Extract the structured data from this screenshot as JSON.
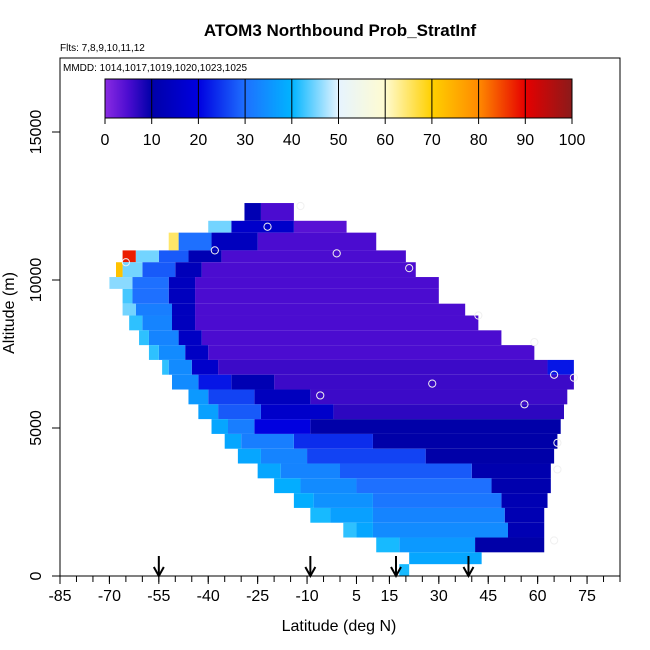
{
  "chart_data": {
    "type": "heatmap",
    "title": "ATOM3 Northbound Prob_StratInf",
    "subtitle_flights": "Flts: 7,8,9,10,11,12",
    "subtitle_dates": "MMDD: 1014,1017,1019,1020,1023,1025",
    "xlabel": "Latitude (deg N)",
    "ylabel": "Altitude (m)",
    "xlim": [
      -85,
      85
    ],
    "ylim": [
      0,
      17500
    ],
    "xticks": [
      -85,
      -70,
      -55,
      -40,
      -25,
      -10,
      5,
      15,
      30,
      45,
      60,
      75
    ],
    "xminor_step": 5,
    "yticks": [
      0,
      5000,
      10000,
      15000
    ],
    "colorbar": {
      "ticks": [
        0,
        10,
        20,
        30,
        40,
        50,
        60,
        70,
        80,
        90,
        100
      ],
      "stops": [
        [
          0,
          "#8a2be2"
        ],
        [
          5,
          "#4b0cd0"
        ],
        [
          10,
          "#0000a8"
        ],
        [
          20,
          "#0000e0"
        ],
        [
          30,
          "#1e70ff"
        ],
        [
          40,
          "#00b4ff"
        ],
        [
          50,
          "#e6f4ff"
        ],
        [
          60,
          "#fffbd0"
        ],
        [
          70,
          "#ffd000"
        ],
        [
          80,
          "#ff8a00"
        ],
        [
          90,
          "#e60000"
        ],
        [
          100,
          "#8b1a1a"
        ]
      ]
    },
    "sample_profile_latitudes": [
      -55,
      -9,
      17,
      39
    ],
    "cells": [
      {
        "lat": [
          -24,
          -14
        ],
        "alt": [
          12000,
          12600
        ],
        "value": 5
      },
      {
        "lat": [
          -29,
          -24
        ],
        "alt": [
          12000,
          12600
        ],
        "value": 12
      },
      {
        "lat": [
          -14,
          2
        ],
        "alt": [
          11600,
          12000
        ],
        "value": 4
      },
      {
        "lat": [
          -33,
          -14
        ],
        "alt": [
          11600,
          12000
        ],
        "value": 16
      },
      {
        "lat": [
          -40,
          -33
        ],
        "alt": [
          11600,
          12000
        ],
        "value": 45
      },
      {
        "lat": [
          -25,
          11
        ],
        "alt": [
          11000,
          11600
        ],
        "value": 5
      },
      {
        "lat": [
          -39,
          -25
        ],
        "alt": [
          11000,
          11600
        ],
        "value": 14
      },
      {
        "lat": [
          -49,
          -39
        ],
        "alt": [
          11000,
          11600
        ],
        "value": 30
      },
      {
        "lat": [
          -52,
          -49
        ],
        "alt": [
          11000,
          11600
        ],
        "value": 65
      },
      {
        "lat": [
          -36,
          20
        ],
        "alt": [
          10600,
          11000
        ],
        "value": 5
      },
      {
        "lat": [
          -46,
          -36
        ],
        "alt": [
          10600,
          11000
        ],
        "value": 12
      },
      {
        "lat": [
          -55,
          -46
        ],
        "alt": [
          10600,
          11000
        ],
        "value": 28
      },
      {
        "lat": [
          -62,
          -55
        ],
        "alt": [
          10600,
          11000
        ],
        "value": 45
      },
      {
        "lat": [
          -66,
          -62
        ],
        "alt": [
          10600,
          11000
        ],
        "value": 88
      },
      {
        "lat": [
          -42,
          23
        ],
        "alt": [
          10100,
          10600
        ],
        "value": 5
      },
      {
        "lat": [
          -50,
          -42
        ],
        "alt": [
          10100,
          10600
        ],
        "value": 13
      },
      {
        "lat": [
          -60,
          -50
        ],
        "alt": [
          10100,
          10600
        ],
        "value": 28
      },
      {
        "lat": [
          -66,
          -60
        ],
        "alt": [
          10100,
          10600
        ],
        "value": 45
      },
      {
        "lat": [
          -68,
          -66
        ],
        "alt": [
          10100,
          10600
        ],
        "value": 72
      },
      {
        "lat": [
          -44,
          30
        ],
        "alt": [
          9700,
          10100
        ],
        "value": 5
      },
      {
        "lat": [
          -52,
          -44
        ],
        "alt": [
          9700,
          10100
        ],
        "value": 14
      },
      {
        "lat": [
          -63,
          -52
        ],
        "alt": [
          9700,
          10100
        ],
        "value": 30
      },
      {
        "lat": [
          -70,
          -63
        ],
        "alt": [
          9700,
          10100
        ],
        "value": 46
      },
      {
        "lat": [
          -44,
          30
        ],
        "alt": [
          9200,
          9700
        ],
        "value": 5
      },
      {
        "lat": [
          -52,
          -44
        ],
        "alt": [
          9200,
          9700
        ],
        "value": 14
      },
      {
        "lat": [
          -63,
          -52
        ],
        "alt": [
          9200,
          9700
        ],
        "value": 30
      },
      {
        "lat": [
          -66,
          -63
        ],
        "alt": [
          9200,
          9700
        ],
        "value": 43
      },
      {
        "lat": [
          -44,
          38
        ],
        "alt": [
          8800,
          9200
        ],
        "value": 5
      },
      {
        "lat": [
          -51,
          -44
        ],
        "alt": [
          8800,
          9200
        ],
        "value": 14
      },
      {
        "lat": [
          -62,
          -51
        ],
        "alt": [
          8800,
          9200
        ],
        "value": 32
      },
      {
        "lat": [
          -66,
          -62
        ],
        "alt": [
          8800,
          9200
        ],
        "value": 45
      },
      {
        "lat": [
          -44,
          42
        ],
        "alt": [
          8300,
          8800
        ],
        "value": 5
      },
      {
        "lat": [
          -51,
          -44
        ],
        "alt": [
          8300,
          8800
        ],
        "value": 14
      },
      {
        "lat": [
          -60,
          -51
        ],
        "alt": [
          8300,
          8800
        ],
        "value": 33
      },
      {
        "lat": [
          -64,
          -60
        ],
        "alt": [
          8300,
          8800
        ],
        "value": 42
      },
      {
        "lat": [
          -42,
          49
        ],
        "alt": [
          7800,
          8300
        ],
        "value": 5
      },
      {
        "lat": [
          -49,
          -42
        ],
        "alt": [
          7800,
          8300
        ],
        "value": 15
      },
      {
        "lat": [
          -58,
          -49
        ],
        "alt": [
          7800,
          8300
        ],
        "value": 33
      },
      {
        "lat": [
          -61,
          -58
        ],
        "alt": [
          7800,
          8300
        ],
        "value": 42
      },
      {
        "lat": [
          -40,
          59
        ],
        "alt": [
          7300,
          7800
        ],
        "value": 5
      },
      {
        "lat": [
          -47,
          -40
        ],
        "alt": [
          7300,
          7800
        ],
        "value": 15
      },
      {
        "lat": [
          -55,
          -47
        ],
        "alt": [
          7300,
          7800
        ],
        "value": 34
      },
      {
        "lat": [
          -58,
          -55
        ],
        "alt": [
          7300,
          7800
        ],
        "value": 42
      },
      {
        "lat": [
          -37,
          63
        ],
        "alt": [
          6800,
          7300
        ],
        "value": 6
      },
      {
        "lat": [
          -45,
          -37
        ],
        "alt": [
          6800,
          7300
        ],
        "value": 16
      },
      {
        "lat": [
          -52,
          -45
        ],
        "alt": [
          6800,
          7300
        ],
        "value": 34
      },
      {
        "lat": [
          -54,
          -52
        ],
        "alt": [
          6800,
          7300
        ],
        "value": 42
      },
      {
        "lat": [
          63,
          71
        ],
        "alt": [
          6800,
          7300
        ],
        "value": 22
      },
      {
        "lat": [
          -20,
          71
        ],
        "alt": [
          6300,
          6800
        ],
        "value": 6
      },
      {
        "lat": [
          -33,
          -20
        ],
        "alt": [
          6300,
          6800
        ],
        "value": 12
      },
      {
        "lat": [
          -43,
          -33
        ],
        "alt": [
          6300,
          6800
        ],
        "value": 22
      },
      {
        "lat": [
          -51,
          -43
        ],
        "alt": [
          6300,
          6800
        ],
        "value": 34
      },
      {
        "lat": [
          -9,
          69
        ],
        "alt": [
          5800,
          6300
        ],
        "value": 6
      },
      {
        "lat": [
          -26,
          -9
        ],
        "alt": [
          5800,
          6300
        ],
        "value": 14
      },
      {
        "lat": [
          -40,
          -26
        ],
        "alt": [
          5800,
          6300
        ],
        "value": 26
      },
      {
        "lat": [
          -46,
          -40
        ],
        "alt": [
          5800,
          6300
        ],
        "value": 36
      },
      {
        "lat": [
          -2,
          68
        ],
        "alt": [
          5300,
          5800
        ],
        "value": 7
      },
      {
        "lat": [
          -24,
          -2
        ],
        "alt": [
          5300,
          5800
        ],
        "value": 16
      },
      {
        "lat": [
          -37,
          -24
        ],
        "alt": [
          5300,
          5800
        ],
        "value": 28
      },
      {
        "lat": [
          -43,
          -37
        ],
        "alt": [
          5300,
          5800
        ],
        "value": 37
      },
      {
        "lat": [
          -9,
          67
        ],
        "alt": [
          4800,
          5300
        ],
        "value": 10
      },
      {
        "lat": [
          -26,
          -9
        ],
        "alt": [
          4800,
          5300
        ],
        "value": 20
      },
      {
        "lat": [
          -34,
          -26
        ],
        "alt": [
          4800,
          5300
        ],
        "value": 32
      },
      {
        "lat": [
          -39,
          -34
        ],
        "alt": [
          4800,
          5300
        ],
        "value": 38
      },
      {
        "lat": [
          10,
          66
        ],
        "alt": [
          4300,
          4800
        ],
        "value": 10
      },
      {
        "lat": [
          -14,
          10
        ],
        "alt": [
          4300,
          4800
        ],
        "value": 24
      },
      {
        "lat": [
          -30,
          -14
        ],
        "alt": [
          4300,
          4800
        ],
        "value": 32
      },
      {
        "lat": [
          -35,
          -30
        ],
        "alt": [
          4300,
          4800
        ],
        "value": 38
      },
      {
        "lat": [
          26,
          65
        ],
        "alt": [
          3800,
          4300
        ],
        "value": 10
      },
      {
        "lat": [
          -10,
          26
        ],
        "alt": [
          3800,
          4300
        ],
        "value": 26
      },
      {
        "lat": [
          -24,
          -10
        ],
        "alt": [
          3800,
          4300
        ],
        "value": 33
      },
      {
        "lat": [
          -31,
          -24
        ],
        "alt": [
          3800,
          4300
        ],
        "value": 38
      },
      {
        "lat": [
          40,
          64
        ],
        "alt": [
          3300,
          3800
        ],
        "value": 11
      },
      {
        "lat": [
          0,
          40
        ],
        "alt": [
          3300,
          3800
        ],
        "value": 28
      },
      {
        "lat": [
          -18,
          0
        ],
        "alt": [
          3300,
          3800
        ],
        "value": 33
      },
      {
        "lat": [
          -25,
          -18
        ],
        "alt": [
          3300,
          3800
        ],
        "value": 38
      },
      {
        "lat": [
          46,
          64
        ],
        "alt": [
          2800,
          3300
        ],
        "value": 11
      },
      {
        "lat": [
          5,
          46
        ],
        "alt": [
          2800,
          3300
        ],
        "value": 30
      },
      {
        "lat": [
          -12,
          5
        ],
        "alt": [
          2800,
          3300
        ],
        "value": 34
      },
      {
        "lat": [
          -20,
          -12
        ],
        "alt": [
          2800,
          3300
        ],
        "value": 39
      },
      {
        "lat": [
          49,
          63
        ],
        "alt": [
          2300,
          2800
        ],
        "value": 12
      },
      {
        "lat": [
          10,
          49
        ],
        "alt": [
          2300,
          2800
        ],
        "value": 31
      },
      {
        "lat": [
          -8,
          10
        ],
        "alt": [
          2300,
          2800
        ],
        "value": 35
      },
      {
        "lat": [
          -14,
          -8
        ],
        "alt": [
          2300,
          2800
        ],
        "value": 39
      },
      {
        "lat": [
          50,
          62
        ],
        "alt": [
          1800,
          2300
        ],
        "value": 12
      },
      {
        "lat": [
          10,
          50
        ],
        "alt": [
          1800,
          2300
        ],
        "value": 33
      },
      {
        "lat": [
          -3,
          10
        ],
        "alt": [
          1800,
          2300
        ],
        "value": 37
      },
      {
        "lat": [
          -9,
          -3
        ],
        "alt": [
          1800,
          2300
        ],
        "value": 41
      },
      {
        "lat": [
          51,
          62
        ],
        "alt": [
          1300,
          1800
        ],
        "value": 12
      },
      {
        "lat": [
          10,
          51
        ],
        "alt": [
          1300,
          1800
        ],
        "value": 34
      },
      {
        "lat": [
          5,
          10
        ],
        "alt": [
          1300,
          1800
        ],
        "value": 38
      },
      {
        "lat": [
          1,
          5
        ],
        "alt": [
          1300,
          1800
        ],
        "value": 42
      },
      {
        "lat": [
          41,
          62
        ],
        "alt": [
          800,
          1300
        ],
        "value": 10
      },
      {
        "lat": [
          18,
          41
        ],
        "alt": [
          800,
          1300
        ],
        "value": 36
      },
      {
        "lat": [
          11,
          18
        ],
        "alt": [
          800,
          1300
        ],
        "value": 41
      },
      {
        "lat": [
          21,
          43
        ],
        "alt": [
          400,
          800
        ],
        "value": 38
      },
      {
        "lat": [
          18,
          21
        ],
        "alt": [
          0,
          400
        ],
        "value": 41
      }
    ],
    "markers": [
      {
        "lat": -12,
        "alt": 12500
      },
      {
        "lat": -22,
        "alt": 11800
      },
      {
        "lat": -38,
        "alt": 11000
      },
      {
        "lat": -1,
        "alt": 10900
      },
      {
        "lat": 21,
        "alt": 10400
      },
      {
        "lat": -65,
        "alt": 10600
      },
      {
        "lat": 42,
        "alt": 8800
      },
      {
        "lat": 59,
        "alt": 7900
      },
      {
        "lat": 65,
        "alt": 6800
      },
      {
        "lat": 71,
        "alt": 6700
      },
      {
        "lat": 28,
        "alt": 6500
      },
      {
        "lat": -6,
        "alt": 6100
      },
      {
        "lat": 56,
        "alt": 5800
      },
      {
        "lat": 66,
        "alt": 4500
      },
      {
        "lat": 66,
        "alt": 3600
      },
      {
        "lat": 65,
        "alt": 1200
      }
    ]
  }
}
